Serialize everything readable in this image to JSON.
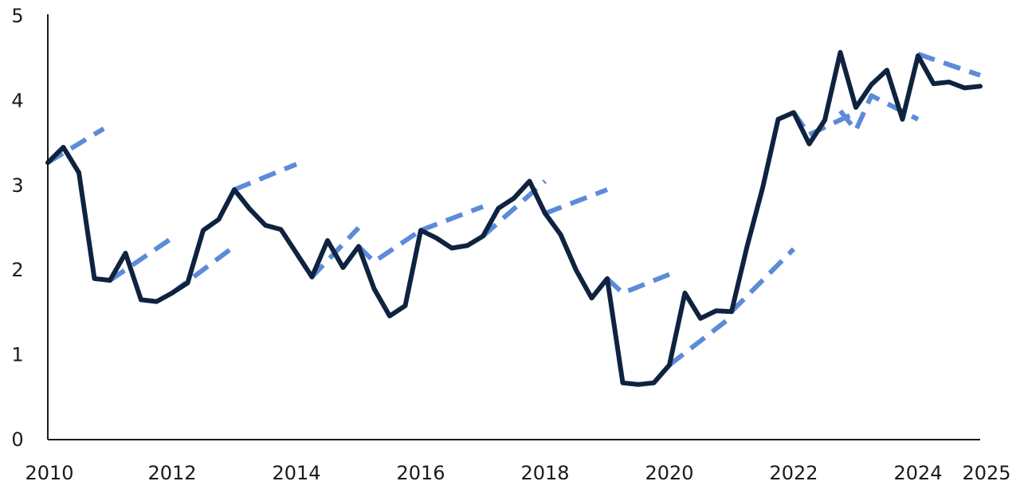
{
  "chart_data": {
    "type": "line",
    "title": "",
    "xlabel": "",
    "ylabel": "",
    "xlim": [
      2010,
      2025
    ],
    "ylim": [
      0,
      5
    ],
    "grid": false,
    "x_tick_labels": [
      "2010",
      "2012",
      "2014",
      "2016",
      "2018",
      "2020",
      "2022",
      "2024",
      "2025"
    ],
    "x_tick_values": [
      2010,
      2012,
      2014,
      2016,
      2018,
      2020,
      2022,
      2024,
      2025
    ],
    "y_tick_labels": [
      "0",
      "1",
      "2",
      "3",
      "4",
      "5"
    ],
    "y_tick_values": [
      0,
      1,
      2,
      3,
      4,
      5
    ],
    "colors": {
      "actual": "#0f2340",
      "forecast": "#5b8bd9",
      "axis": "#1a1a1a"
    },
    "series": [
      {
        "style": "solid",
        "x": [
          2010.0,
          2010.25,
          2010.5,
          2010.75,
          2011.0,
          2011.25,
          2011.5,
          2011.75,
          2012.0,
          2012.25,
          2012.5,
          2012.75,
          2013.0,
          2013.25,
          2013.5,
          2013.75,
          2014.0,
          2014.25,
          2014.5,
          2014.75,
          2015.0,
          2015.25,
          2015.5,
          2015.75,
          2016.0,
          2016.25,
          2016.5,
          2016.75,
          2017.0,
          2017.25,
          2017.5,
          2017.75,
          2018.0,
          2018.25,
          2018.5,
          2018.75,
          2019.0,
          2019.25,
          2019.5,
          2019.75,
          2020.0,
          2020.25,
          2020.5,
          2020.75,
          2021.0,
          2021.25,
          2021.5,
          2021.75,
          2022.0,
          2022.25,
          2022.5,
          2022.75,
          2023.0,
          2023.25,
          2023.5,
          2023.75,
          2024.0,
          2024.25,
          2024.5,
          2024.75,
          2025.0
        ],
        "values": [
          3.27,
          3.45,
          3.15,
          1.9,
          1.88,
          2.2,
          1.65,
          1.63,
          1.73,
          1.85,
          2.47,
          2.6,
          2.95,
          2.72,
          2.53,
          2.48,
          2.2,
          1.92,
          2.35,
          2.03,
          2.28,
          1.78,
          1.46,
          1.58,
          2.47,
          2.38,
          2.26,
          2.29,
          2.4,
          2.73,
          2.85,
          3.05,
          2.67,
          2.42,
          2.0,
          1.67,
          1.9,
          0.67,
          0.65,
          0.67,
          0.88,
          1.73,
          1.43,
          1.52,
          1.51,
          2.28,
          2.97,
          3.78,
          3.86,
          3.49,
          3.77,
          4.57,
          3.92,
          4.19,
          4.36,
          3.78,
          4.53,
          4.2,
          4.22,
          4.15,
          4.17
        ]
      },
      {
        "style": "dashed",
        "segments": [
          {
            "x": [
              2010.0,
              2010.9
            ],
            "values": [
              3.27,
              3.67
            ]
          },
          {
            "x": [
              2011.0,
              2012.0
            ],
            "values": [
              1.88,
              2.38
            ]
          },
          {
            "x": [
              2012.0,
              2013.0
            ],
            "values": [
              1.73,
              2.28
            ]
          },
          {
            "x": [
              2013.0,
              2014.0
            ],
            "values": [
              2.95,
              3.25
            ]
          },
          {
            "x": [
              2014.0,
              2014.25,
              2015.0
            ],
            "values": [
              2.2,
              1.92,
              2.5
            ]
          },
          {
            "x": [
              2015.0,
              2015.25,
              2016.0
            ],
            "values": [
              2.28,
              2.1,
              2.47
            ]
          },
          {
            "x": [
              2016.0,
              2017.0
            ],
            "values": [
              2.47,
              2.75
            ]
          },
          {
            "x": [
              2017.0,
              2018.0
            ],
            "values": [
              2.4,
              3.05
            ]
          },
          {
            "x": [
              2018.0,
              2019.0
            ],
            "values": [
              2.67,
              2.95
            ]
          },
          {
            "x": [
              2019.0,
              2019.25,
              2020.0
            ],
            "values": [
              1.9,
              1.73,
              1.95
            ]
          },
          {
            "x": [
              2020.0,
              2021.0
            ],
            "values": [
              0.88,
              1.45
            ]
          },
          {
            "x": [
              2021.0,
              2022.0
            ],
            "values": [
              1.51,
              2.25
            ]
          },
          {
            "x": [
              2022.0,
              2022.25,
              2023.0
            ],
            "values": [
              3.86,
              3.6,
              3.86
            ]
          },
          {
            "x": [
              2022.75,
              2023.0,
              2023.25,
              2024.0
            ],
            "values": [
              3.88,
              3.65,
              4.06,
              3.78
            ]
          },
          {
            "x": [
              2024.0,
              2025.0
            ],
            "values": [
              4.55,
              4.3
            ]
          }
        ]
      }
    ]
  }
}
